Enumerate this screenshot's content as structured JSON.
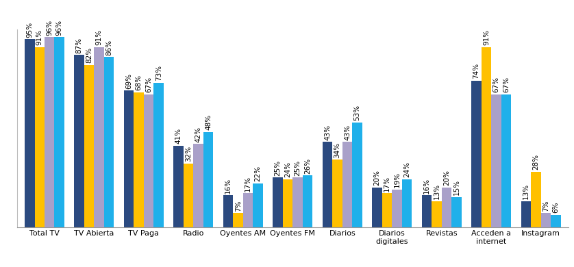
{
  "chart_data": {
    "type": "bar",
    "categories": [
      "Total TV",
      "TV Abierta",
      "TV Paga",
      "Radio",
      "Oyentes AM",
      "Oyentes FM",
      "Diarios",
      "Diarios digitales",
      "Revistas",
      "Acceden a internet",
      "Instagram"
    ],
    "series": [
      {
        "color": "#2b4a80",
        "values": [
          95,
          87,
          69,
          41,
          16,
          25,
          43,
          20,
          16,
          74,
          13
        ],
        "value_labels": [
          "95%",
          "87%",
          "69%",
          "41%",
          "16%",
          "25%",
          "43%",
          "20%",
          "16%",
          "74%",
          "13%"
        ]
      },
      {
        "color": "#ffc000",
        "values": [
          91,
          82,
          68,
          32,
          7,
          24,
          34,
          17,
          13,
          91,
          28
        ],
        "value_labels": [
          "91%",
          "82%",
          "68%",
          "32%",
          "7%",
          "24%",
          "34%",
          "17%",
          "13%",
          "91%",
          "28%"
        ]
      },
      {
        "color": "#a9a0c9",
        "values": [
          96,
          91,
          67,
          42,
          17,
          25,
          43,
          19,
          20,
          67,
          7
        ],
        "value_labels": [
          "96%",
          "91%",
          "67%",
          "42%",
          "17%",
          "25%",
          "43%",
          "19%",
          "20%",
          "67%",
          "7%"
        ]
      },
      {
        "color": "#1fb0ea",
        "values": [
          96,
          86,
          73,
          48,
          22,
          26,
          53,
          24,
          15,
          67,
          6
        ],
        "value_labels": [
          "96%",
          "86%",
          "73%",
          "48%",
          "22%",
          "26%",
          "53%",
          "24%",
          "15%",
          "67%",
          "6%"
        ]
      }
    ],
    "ylim": [
      0,
      100
    ],
    "data_labels": true,
    "tick_labels": "x",
    "grid": false
  }
}
